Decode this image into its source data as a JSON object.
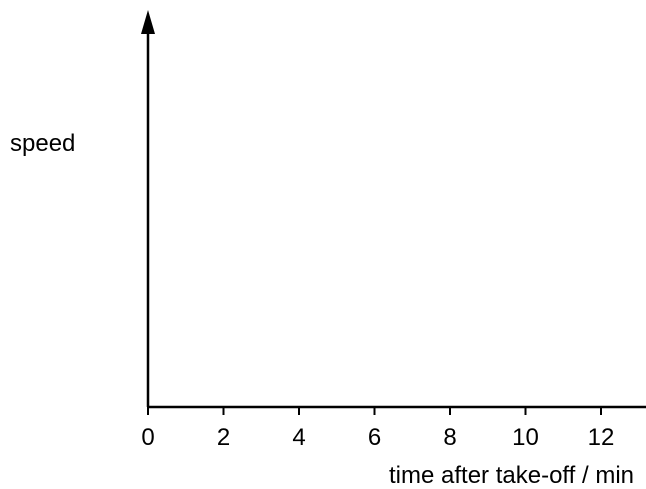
{
  "chart_data": {
    "type": "line",
    "title": "",
    "xlabel": "time after take-off / min",
    "ylabel": "speed",
    "xlim": [
      0,
      13
    ],
    "xticks": [
      0,
      2,
      4,
      6,
      8,
      10,
      12
    ],
    "xtick_labels": [
      "0",
      "2",
      "4",
      "6",
      "8",
      "10",
      "12"
    ],
    "yticks": [],
    "grid": false,
    "series": []
  }
}
